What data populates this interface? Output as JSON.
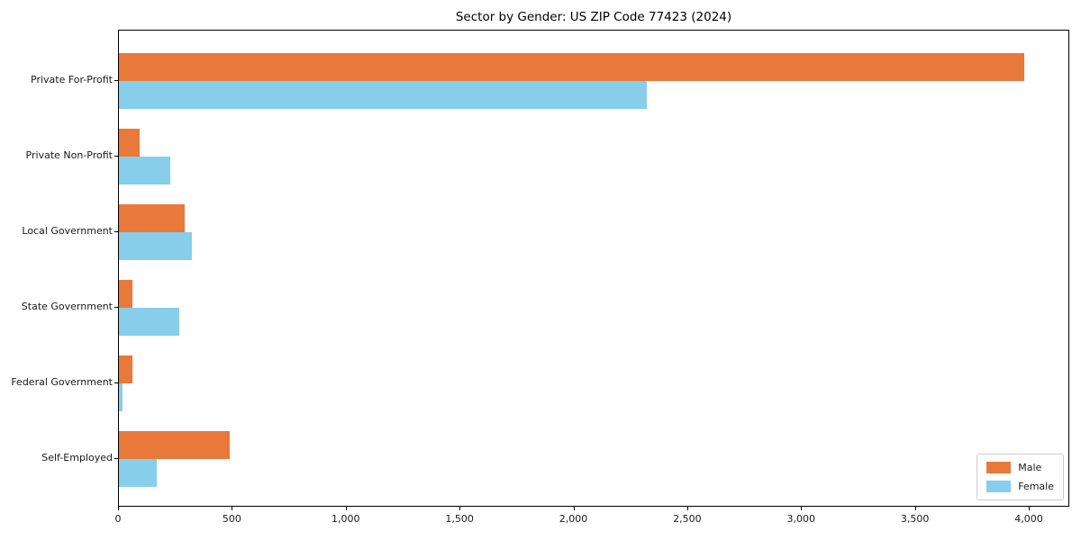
{
  "title": "Sector by Gender: US ZIP Code 77423 (2024)",
  "colors": {
    "male": "#e8793b",
    "female": "#87ceeb",
    "spine": "#000000",
    "legend_border": "#cccccc",
    "background": "#ffffff"
  },
  "chart_data": {
    "type": "bar",
    "orientation": "horizontal",
    "title": "Sector by Gender: US ZIP Code 77423 (2024)",
    "xlabel": "",
    "ylabel": "",
    "grid": false,
    "legend_position": "lower right",
    "categories": [
      "Private For-Profit",
      "Private Non-Profit",
      "Local Government",
      "State Government",
      "Federal Government",
      "Self-Employed"
    ],
    "series": [
      {
        "name": "Male",
        "color": "#e8793b",
        "values": [
          3975,
          90,
          290,
          60,
          58,
          485
        ]
      },
      {
        "name": "Female",
        "color": "#87ceeb",
        "values": [
          2320,
          225,
          320,
          265,
          14,
          165
        ]
      }
    ],
    "xlim": [
      0,
      4175
    ],
    "xticks": [
      0,
      500,
      1000,
      1500,
      2000,
      2500,
      3000,
      3500,
      4000
    ],
    "xtick_labels": [
      "0",
      "500",
      "1,000",
      "1,500",
      "2,000",
      "2,500",
      "3,000",
      "3,500",
      "4,000"
    ]
  }
}
